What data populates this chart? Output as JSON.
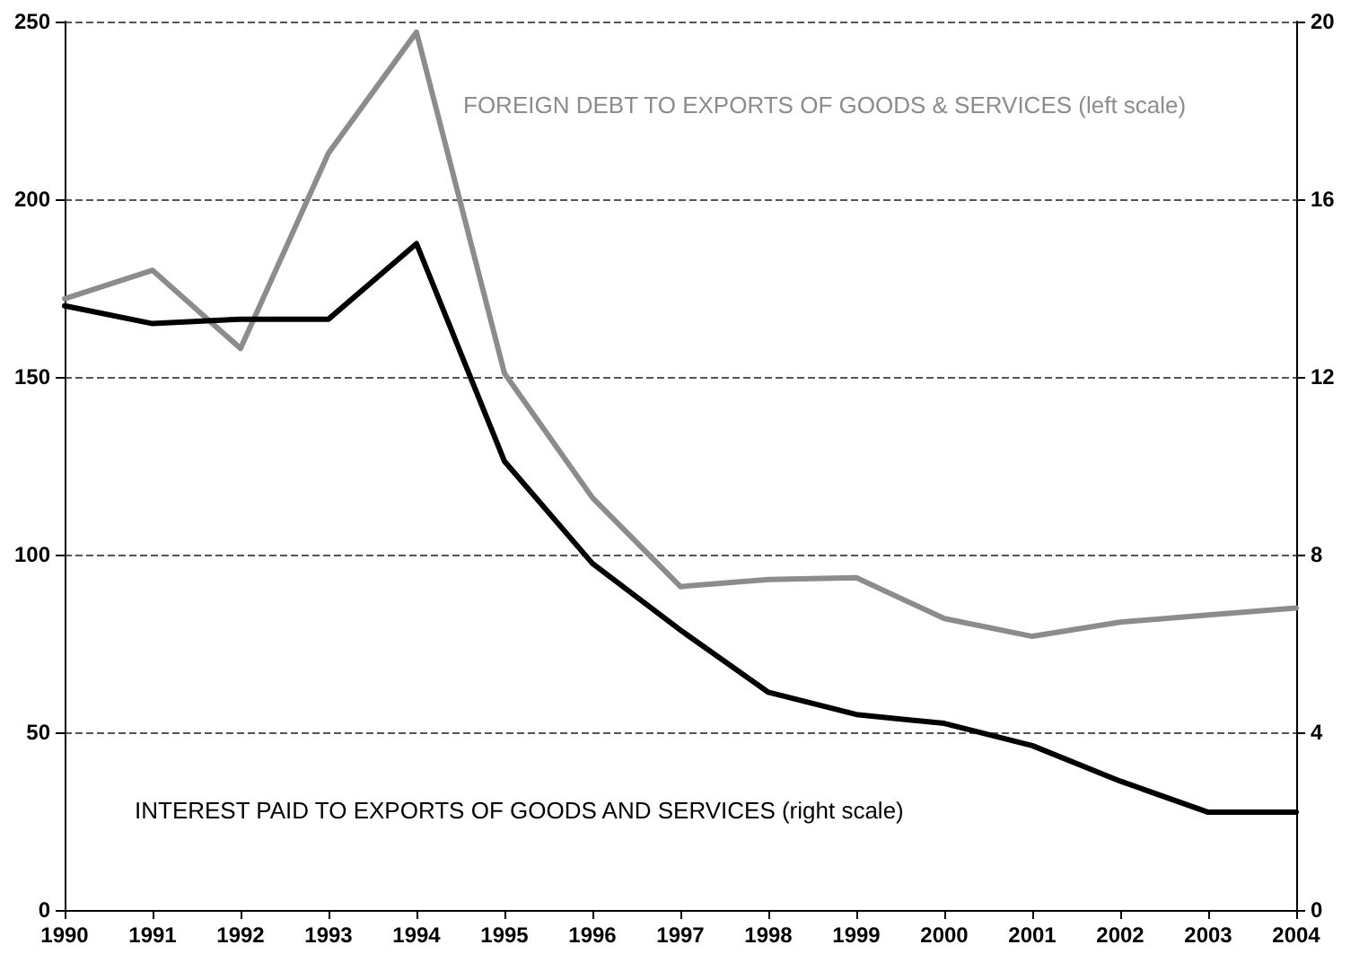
{
  "chart_data": {
    "type": "line",
    "categories": [
      "1990",
      "1991",
      "1992",
      "1993",
      "1994",
      "1995",
      "1996",
      "1997",
      "1998",
      "1999",
      "2000",
      "2001",
      "2002",
      "2003",
      "2004"
    ],
    "series": [
      {
        "name": "FOREIGN DEBT TO EXPORTS OF GOODS & SERVICES (left scale)",
        "color": "#8c8c8c",
        "values": [
          172,
          180,
          158,
          213,
          247,
          151,
          116,
          91,
          93,
          93.5,
          82,
          77,
          81,
          83,
          85
        ]
      },
      {
        "name": "INTEREST PAID TO EXPORTS OF GOODS AND SERVICES (right scale)",
        "color": "#000000",
        "axis": "y2",
        "values": [
          13.6,
          13.2,
          13.3,
          13.3,
          15.0,
          10.1,
          7.8,
          6.3,
          4.9,
          4.4,
          4.2,
          3.7,
          2.9,
          2.2,
          2.2
        ]
      }
    ],
    "ylim": [
      0,
      250
    ],
    "yticks": [
      0,
      50,
      100,
      150,
      200,
      250
    ],
    "y2lim": [
      0,
      20
    ],
    "y2ticks": [
      0,
      4,
      8,
      12,
      16,
      20
    ],
    "grid": "y",
    "legend": false,
    "marker": "none",
    "line_style": "solid"
  }
}
